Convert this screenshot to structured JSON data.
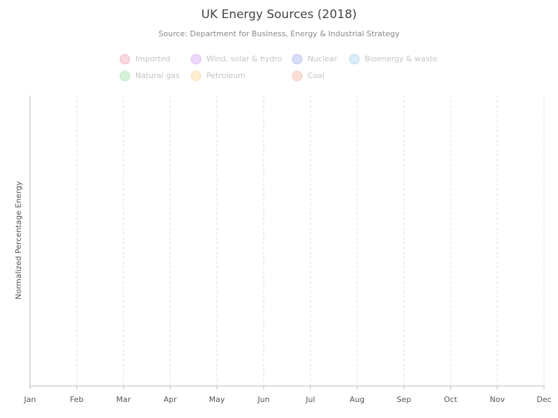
{
  "chart_data": {
    "type": "area",
    "title": "UK Energy Sources (2018)",
    "subtitle": "Source: Department for Business, Energy & Industrial Strategy",
    "y_label": "Normalized Percentage Energy",
    "categories": [
      "Jan",
      "Feb",
      "Mar",
      "Apr",
      "May",
      "Jun",
      "Jul",
      "Aug",
      "Sep",
      "Oct",
      "Nov",
      "Dec"
    ],
    "grid": true,
    "series": [
      {
        "name": "Imported",
        "color": "#e05a7a",
        "hidden": true
      },
      {
        "name": "Wind, solar & hydro",
        "color": "#ae5ce0",
        "hidden": true
      },
      {
        "name": "Nuclear",
        "color": "#5a6ee0",
        "hidden": true
      },
      {
        "name": "Bioenergy & waste",
        "color": "#5ab4d6",
        "hidden": true
      },
      {
        "name": "Natural gas",
        "color": "#5cc46a",
        "hidden": true
      },
      {
        "name": "Petroleum",
        "color": "#f5b942",
        "hidden": true
      },
      {
        "name": "Coal",
        "color": "#f07a56",
        "hidden": true
      }
    ]
  }
}
